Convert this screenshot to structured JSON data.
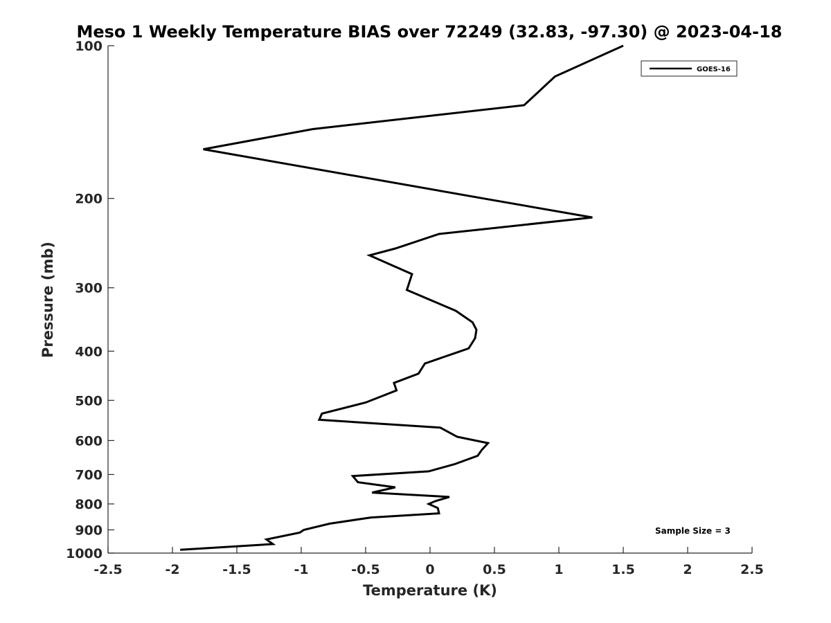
{
  "chart_data": {
    "type": "line",
    "title": "Meso 1 Weekly Temperature BIAS over 72249 (32.83, -97.30) @ 2023-04-18",
    "xlabel": "Temperature (K)",
    "ylabel": "Pressure (mb)",
    "xlim": [
      -2.5,
      2.5
    ],
    "ylim": [
      100,
      1000
    ],
    "y_scale": "log",
    "y_reversed": true,
    "grid": false,
    "legend_position": "top-right",
    "x_ticks": [
      "-2.5",
      "-2",
      "-1.5",
      "-1",
      "-0.5",
      "0",
      "0.5",
      "1",
      "1.5",
      "2",
      "2.5"
    ],
    "y_ticks": [
      "100",
      "200",
      "300",
      "400",
      "500",
      "600",
      "700",
      "800",
      "900",
      "1000"
    ],
    "series": [
      {
        "name": "GOES-16",
        "color": "#000000",
        "points": [
          [
            1.5,
            100
          ],
          [
            0.97,
            115
          ],
          [
            0.73,
            131
          ],
          [
            -0.91,
            146
          ],
          [
            -1.76,
            160
          ],
          [
            0.46,
            201
          ],
          [
            1.26,
            218
          ],
          [
            0.07,
            235
          ],
          [
            -0.27,
            251
          ],
          [
            -0.47,
            259
          ],
          [
            -0.14,
            282
          ],
          [
            -0.18,
            303
          ],
          [
            0.2,
            333
          ],
          [
            0.33,
            351
          ],
          [
            0.36,
            363
          ],
          [
            0.35,
            377
          ],
          [
            0.3,
            395
          ],
          [
            -0.04,
            423
          ],
          [
            -0.09,
            443
          ],
          [
            -0.28,
            462
          ],
          [
            -0.26,
            478
          ],
          [
            -0.5,
            505
          ],
          [
            -0.84,
            531
          ],
          [
            -0.86,
            546
          ],
          [
            0.08,
            566
          ],
          [
            0.21,
            590
          ],
          [
            0.45,
            607
          ],
          [
            0.4,
            627
          ],
          [
            0.37,
            643
          ],
          [
            0.19,
            668
          ],
          [
            -0.01,
            690
          ],
          [
            -0.6,
            705
          ],
          [
            -0.56,
            725
          ],
          [
            -0.27,
            742
          ],
          [
            -0.45,
            760
          ],
          [
            0.15,
            775
          ],
          [
            0.04,
            790
          ],
          [
            -0.01,
            800
          ],
          [
            0.06,
            815
          ],
          [
            0.07,
            835
          ],
          [
            -0.46,
            851
          ],
          [
            -0.78,
            875
          ],
          [
            -0.98,
            900
          ],
          [
            -1.01,
            911
          ],
          [
            -1.27,
            940
          ],
          [
            -1.22,
            960
          ],
          [
            -1.94,
            985
          ]
        ]
      }
    ],
    "annotations": [
      "Sample Size = 3"
    ]
  }
}
